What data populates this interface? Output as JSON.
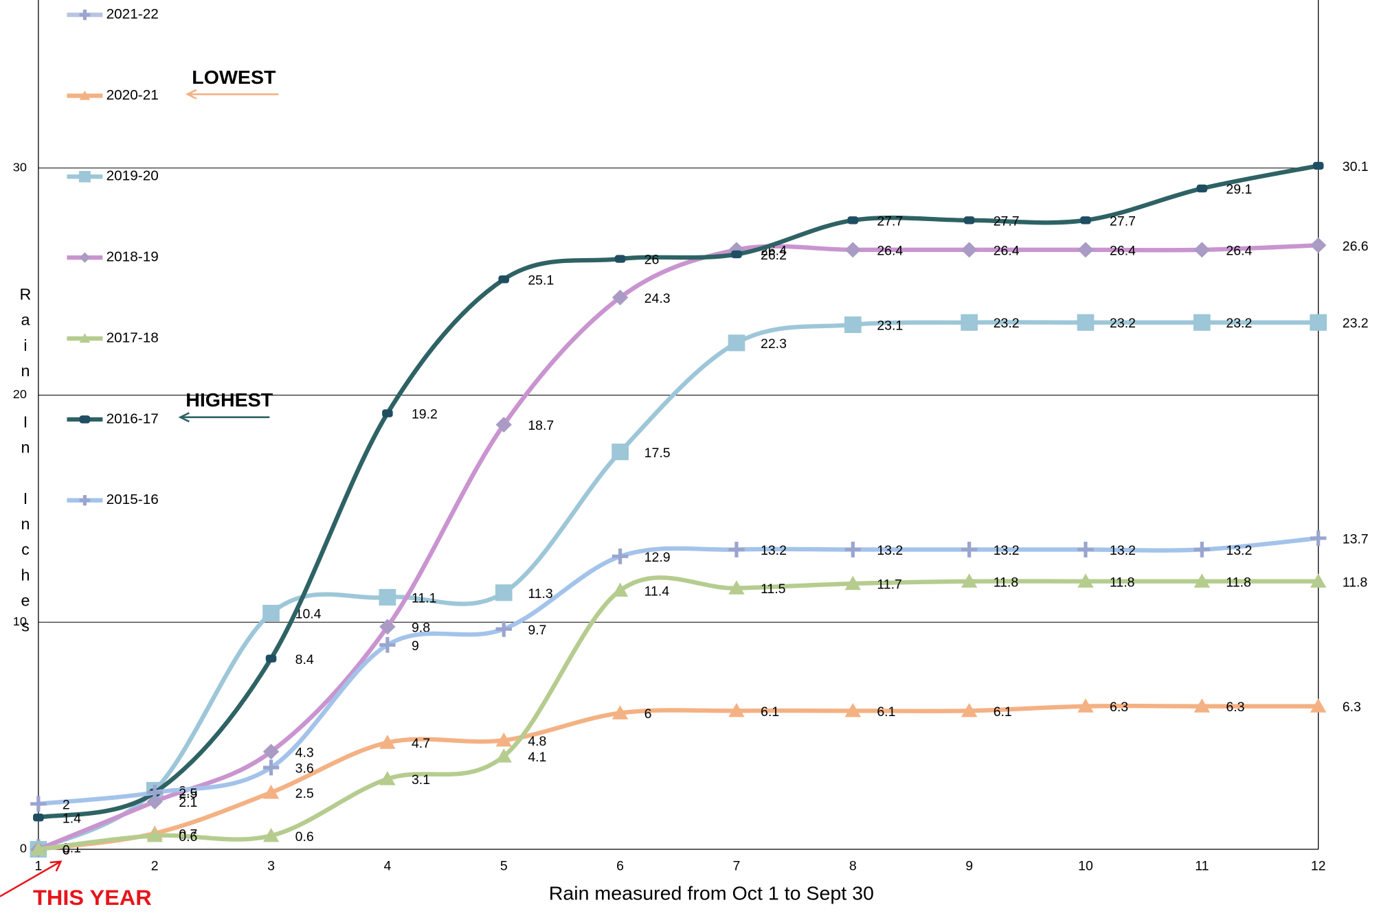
{
  "chart_data": {
    "type": "line",
    "x_label": "Rain measured from Oct 1 to Sept 30",
    "y_label": "Rain In Inches",
    "categories": [
      "1",
      "2",
      "3",
      "4",
      "5",
      "6",
      "7",
      "8",
      "9",
      "10",
      "11",
      "12"
    ],
    "ylim": [
      0,
      37.4
    ],
    "yticks": [
      0,
      10,
      20,
      30
    ],
    "grid": true,
    "smooth": true,
    "legend": "left",
    "series": [
      {
        "name": "2021-22",
        "color": "#b9c4e2",
        "marker": "plus",
        "values": [
          0.1,
          null,
          null,
          null,
          null,
          null,
          null,
          null,
          null,
          null,
          null,
          null
        ]
      },
      {
        "name": "2020-21",
        "color": "#f4b183",
        "marker": "triangle",
        "values": [
          0.0,
          0.7,
          2.5,
          4.7,
          4.8,
          6.0,
          6.1,
          6.1,
          6.1,
          6.3,
          6.3,
          6.3
        ]
      },
      {
        "name": "2019-20",
        "color": "#9dc7d8",
        "marker": "square",
        "values": [
          0.0,
          2.6,
          10.4,
          11.1,
          11.3,
          17.5,
          22.3,
          23.1,
          23.2,
          23.2,
          23.2,
          23.2
        ]
      },
      {
        "name": "2018-19",
        "color": "#c994d0",
        "marker": "diamond",
        "values": [
          0.0,
          2.1,
          4.3,
          9.8,
          18.7,
          24.3,
          26.4,
          26.4,
          26.4,
          26.4,
          26.4,
          26.6
        ]
      },
      {
        "name": "2017-18",
        "color": "#b5cc8e",
        "marker": "triangle",
        "values": [
          0.0,
          0.6,
          0.6,
          3.1,
          4.1,
          11.4,
          11.5,
          11.7,
          11.8,
          11.8,
          11.8,
          11.8
        ]
      },
      {
        "name": "2016-17",
        "color": "#2e6264",
        "marker": "dot",
        "values": [
          1.4,
          2.5,
          8.4,
          19.2,
          25.1,
          26.0,
          26.2,
          27.7,
          27.7,
          27.7,
          29.1,
          30.1
        ]
      },
      {
        "name": "2015-16",
        "color": "#a3c3ea",
        "marker": "plus",
        "values": [
          2.0,
          2.5,
          3.6,
          9.0,
          9.7,
          12.9,
          13.2,
          13.2,
          13.2,
          13.2,
          13.2,
          13.7
        ]
      }
    ],
    "annotations": [
      {
        "text": "LOWEST"
      },
      {
        "text": "HIGHEST"
      },
      {
        "text": "THIS YEAR"
      }
    ]
  }
}
